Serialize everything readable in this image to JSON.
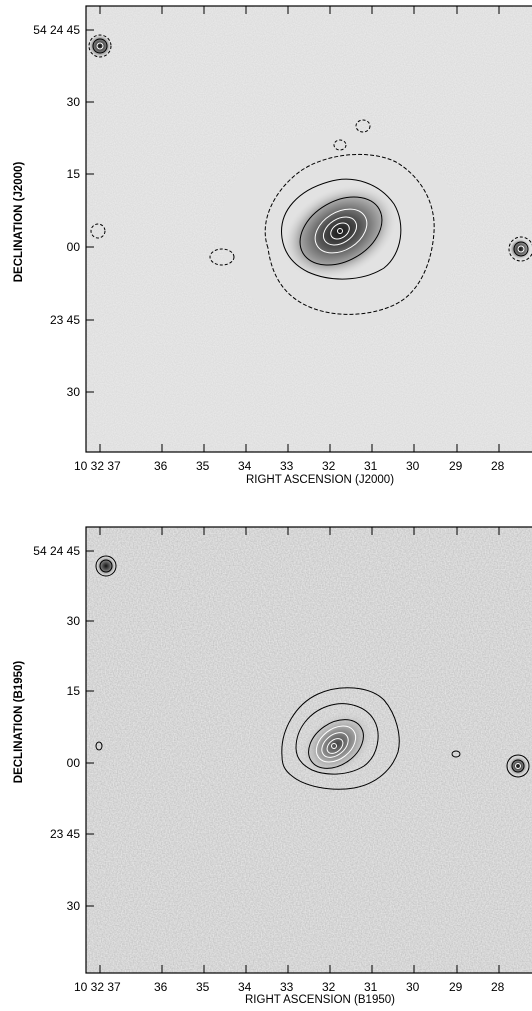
{
  "chart_data": [
    {
      "type": "contour",
      "panel": "top",
      "xlabel": "RIGHT ASCENSION (J2000)",
      "ylabel": "DECLINATION (J2000)",
      "x_ticks": [
        "10 32 37",
        "36",
        "35",
        "34",
        "33",
        "32",
        "31",
        "30",
        "29",
        "28"
      ],
      "y_ticks": [
        "54 24 45",
        "30",
        "15",
        "00",
        "23 45",
        "30"
      ],
      "grid": false,
      "sources": [
        {
          "x": 37.6,
          "y": 40,
          "peak": "compact",
          "contours": 3
        },
        {
          "x": 31.8,
          "y": 2,
          "peak": "galaxy",
          "contours": 7
        },
        {
          "x": 37.5,
          "y": 3,
          "peak": "faint",
          "contours": 1
        },
        {
          "x": 34.6,
          "y": -2,
          "peak": "faint",
          "contours": 2
        },
        {
          "x": 27.6,
          "y": 0,
          "peak": "compact",
          "contours": 3
        }
      ]
    },
    {
      "type": "contour",
      "panel": "bottom",
      "xlabel": "RIGHT ASCENSION (B1950)",
      "ylabel": "DECLINATION (B1950)",
      "x_ticks": [
        "10 32 37",
        "36",
        "35",
        "34",
        "33",
        "32",
        "31",
        "30",
        "29",
        "28"
      ],
      "y_ticks": [
        "54 24 45",
        "30",
        "15",
        "00",
        "23 45",
        "30"
      ],
      "grid": false,
      "sources": [
        {
          "x": 37.6,
          "y": 40,
          "peak": "compact",
          "contours": 3
        },
        {
          "x": 31.8,
          "y": 2,
          "peak": "galaxy",
          "contours": 7
        },
        {
          "x": 27.6,
          "y": 0,
          "peak": "compact",
          "contours": 3
        }
      ]
    }
  ]
}
